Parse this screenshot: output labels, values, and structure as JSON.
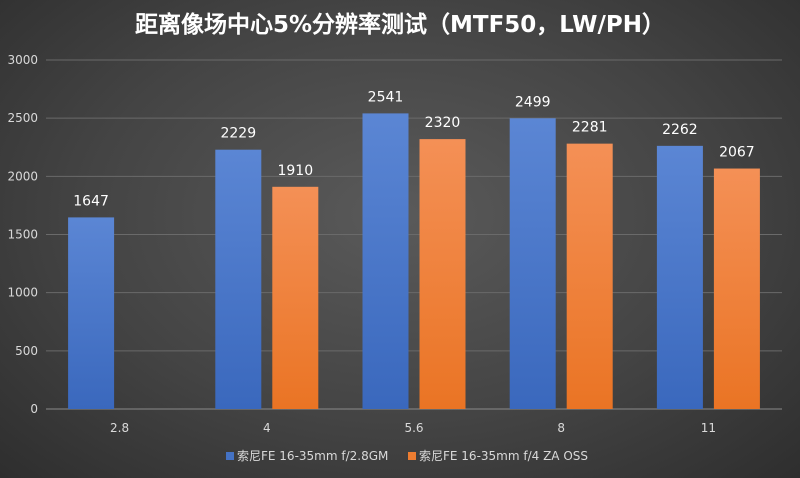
{
  "chart_data": {
    "type": "bar",
    "title": "距离像场中心5%分辨率测试（MTF50，LW/PH）",
    "categories": [
      "2.8",
      "4",
      "5.6",
      "8",
      "11"
    ],
    "series": [
      {
        "name": "索尼FE 16-35mm f/2.8GM",
        "color": "#4472C4",
        "values": [
          1647,
          2229,
          2541,
          2499,
          2262
        ]
      },
      {
        "name": "索尼FE 16-35mm f/4 ZA OSS",
        "color": "#ED7D31",
        "values": [
          null,
          1910,
          2320,
          2281,
          2067
        ]
      }
    ],
    "yticks": [
      0,
      500,
      1000,
      1500,
      2000,
      2500,
      3000
    ],
    "ylim": [
      0,
      3000
    ],
    "grid": true,
    "legend": "bottom-center",
    "xlabel": "",
    "ylabel": ""
  }
}
